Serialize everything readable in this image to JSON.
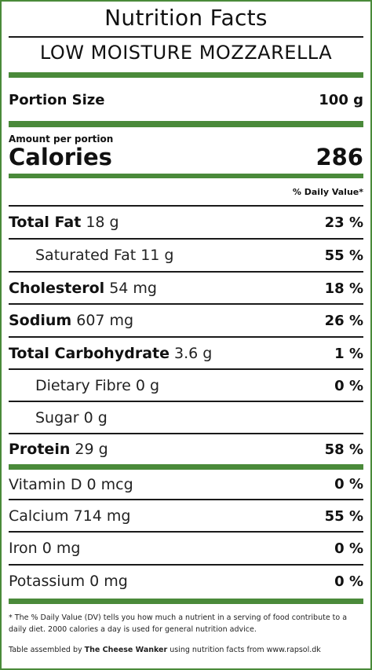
{
  "title": "Nutrition Facts",
  "product": "LOW MOISTURE MOZZARELLA",
  "portion": {
    "label": "Portion Size",
    "value": "100 g"
  },
  "amount_per_portion": "Amount per portion",
  "calories": {
    "label": "Calories",
    "value": "286"
  },
  "daily_value_header": "% Daily Value*",
  "nutrients": [
    {
      "name": "Total Fat",
      "amount": "18 g",
      "dv": "23 %"
    },
    {
      "name": "Saturated Fat",
      "amount": "11 g",
      "dv": "55 %"
    },
    {
      "name": "Cholesterol",
      "amount": "54 mg",
      "dv": "18 %"
    },
    {
      "name": "Sodium",
      "amount": "607 mg",
      "dv": "26 %"
    },
    {
      "name": "Total Carbohydrate",
      "amount": "3.6 g",
      "dv": "1 %"
    },
    {
      "name": "Dietary Fibre",
      "amount": "0 g",
      "dv": "0 %"
    },
    {
      "name": "Sugar",
      "amount": "0 g",
      "dv": ""
    },
    {
      "name": "Protein",
      "amount": "29 g",
      "dv": "58 %"
    }
  ],
  "vitamins": [
    {
      "name": "Vitamin D",
      "amount": "0 mcg",
      "dv": "0 %"
    },
    {
      "name": "Calcium",
      "amount": "714 mg",
      "dv": "55 %"
    },
    {
      "name": "Iron",
      "amount": "0 mg",
      "dv": "0 %"
    },
    {
      "name": "Potassium",
      "amount": "0 mg",
      "dv": "0 %"
    }
  ],
  "footnote": "* The % Daily Value (DV) tells you how much a nutrient in a serving of food contribute to a daily diet. 2000 calories a day is used for general nutrition advice.",
  "credit": {
    "prefix": "Table assembled by",
    "author": "The Cheese Wanker",
    "suffix": "using nutrition facts from www.rapsol.dk"
  },
  "colors": {
    "accent": "#4a8a3a",
    "text": "#111111"
  }
}
